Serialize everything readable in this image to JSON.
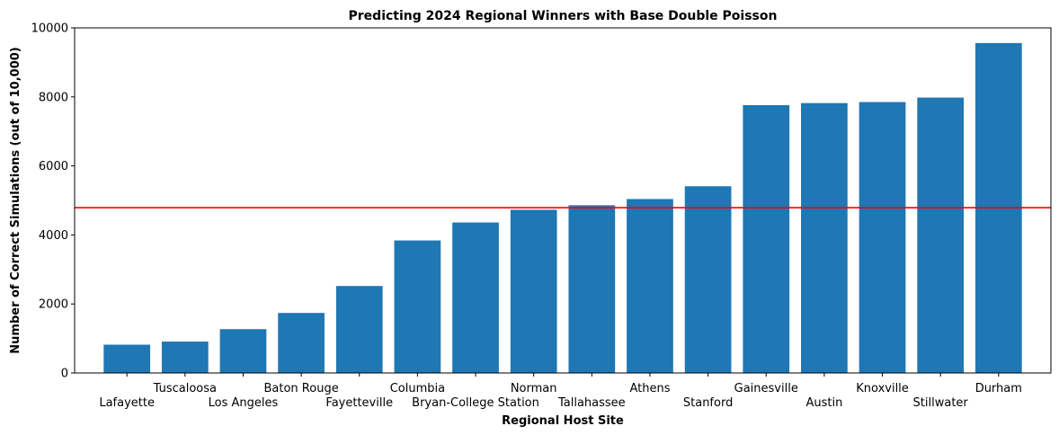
{
  "chart_data": {
    "type": "bar",
    "title": "Predicting 2024 Regional Winners with Base Double Poisson",
    "xlabel": "Regional Host Site",
    "ylabel": "Number of Correct Simulations (out of 10,000)",
    "categories": [
      "Lafayette",
      "Tuscaloosa",
      "Los Angeles",
      "Baton Rouge",
      "Fayetteville",
      "Columbia",
      "Bryan-College Station",
      "Norman",
      "Tallahassee",
      "Athens",
      "Stanford",
      "Gainesville",
      "Austin",
      "Knoxville",
      "Stillwater",
      "Durham"
    ],
    "values": [
      820,
      910,
      1270,
      1740,
      2520,
      3840,
      4360,
      4730,
      4860,
      5040,
      5410,
      7760,
      7820,
      7850,
      7980,
      9560
    ],
    "yticks": [
      "0",
      "2000",
      "4000",
      "6000",
      "8000",
      "10000"
    ],
    "ylim": [
      0,
      10000
    ],
    "reference_line": 4790,
    "grid": false,
    "bar_color": "#1f77b4",
    "reference_line_color": "#ff0000"
  }
}
